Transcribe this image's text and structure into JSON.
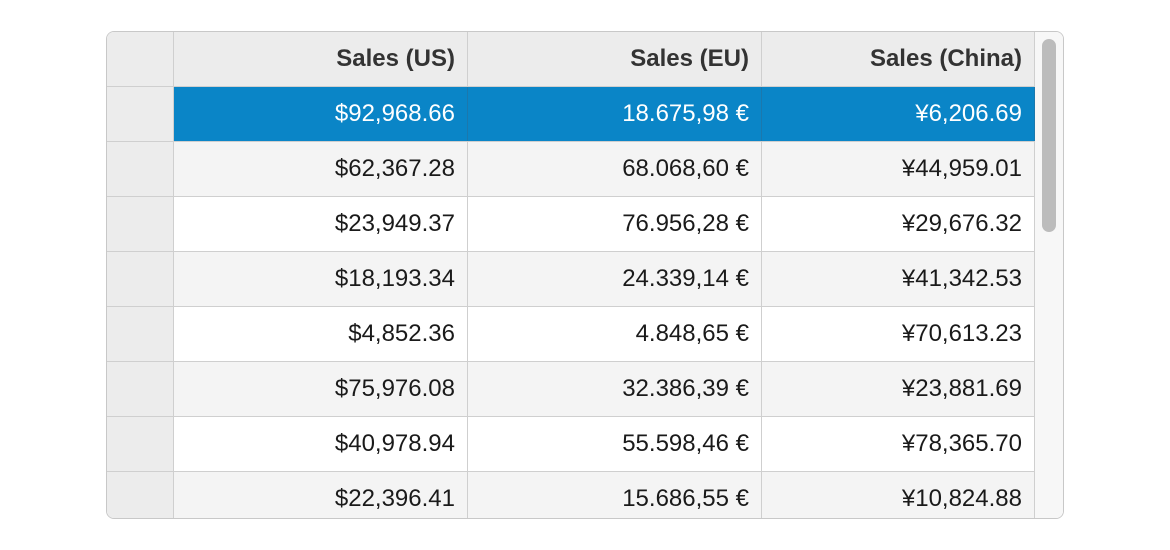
{
  "grid": {
    "columns": [
      "Sales (US)",
      "Sales (EU)",
      "Sales (China)"
    ],
    "rows": [
      [
        "$92,968.66",
        "18.675,98 €",
        "¥6,206.69"
      ],
      [
        "$62,367.28",
        "68.068,60 €",
        "¥44,959.01"
      ],
      [
        "$23,949.37",
        "76.956,28 €",
        "¥29,676.32"
      ],
      [
        "$18,193.34",
        "24.339,14 €",
        "¥41,342.53"
      ],
      [
        "$4,852.36",
        "4.848,65 €",
        "¥70,613.23"
      ],
      [
        "$75,976.08",
        "32.386,39 €",
        "¥23,881.69"
      ],
      [
        "$40,978.94",
        "55.598,46 €",
        "¥78,365.70"
      ],
      [
        "$22,396.41",
        "15.686,55 €",
        "¥10,824.88"
      ]
    ],
    "selected_row": 0,
    "colors": {
      "selection": "#0a85c7",
      "header_bg": "#ececec",
      "alt_row_bg": "#f4f4f4"
    }
  }
}
